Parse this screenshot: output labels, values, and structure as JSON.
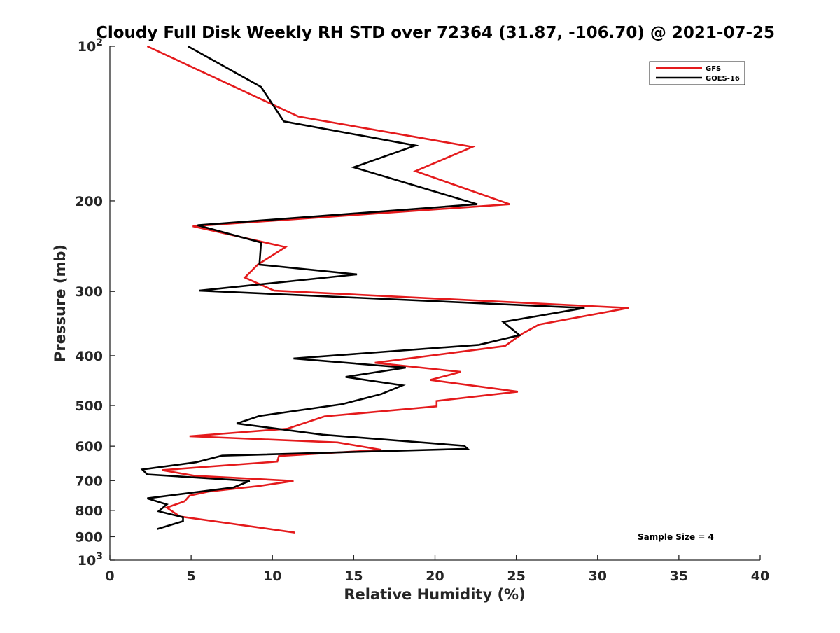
{
  "chart_data": {
    "type": "line",
    "title": "Cloudy Full Disk Weekly RH STD over 72364 (31.87, -106.70) @ 2021-07-25",
    "xlabel": "Relative Humidity (%)",
    "ylabel": "Pressure (mb)",
    "xlim": [
      0,
      40
    ],
    "ylim": [
      100,
      1000
    ],
    "y_scale": "log",
    "y_reversed": true,
    "x_ticks": [
      "0",
      "5",
      "10",
      "15",
      "20",
      "25",
      "30",
      "35",
      "40"
    ],
    "y_ticks": [
      {
        "value": 100,
        "base": "10",
        "exp": "2"
      },
      {
        "value": 200,
        "label": "200"
      },
      {
        "value": 300,
        "label": "300"
      },
      {
        "value": 400,
        "label": "400"
      },
      {
        "value": 500,
        "label": "500"
      },
      {
        "value": 600,
        "label": "600"
      },
      {
        "value": 700,
        "label": "700"
      },
      {
        "value": 800,
        "label": "800"
      },
      {
        "value": 900,
        "label": "900"
      },
      {
        "value": 1000,
        "base": "10",
        "exp": "3"
      }
    ],
    "grid": false,
    "legend_position": "top-right",
    "annotation": "Sample Size = 4",
    "series": [
      {
        "name": "GFS",
        "color": "#e41a1c",
        "points": [
          [
            2.3,
            100
          ],
          [
            11.6,
            137
          ],
          [
            22.3,
            157
          ],
          [
            18.8,
            175
          ],
          [
            24.6,
            203
          ],
          [
            5.1,
            224
          ],
          [
            10.8,
            246
          ],
          [
            9.1,
            266
          ],
          [
            8.3,
            282
          ],
          [
            10.1,
            299
          ],
          [
            31.9,
            323
          ],
          [
            26.4,
            348
          ],
          [
            25.4,
            362
          ],
          [
            24.3,
            383
          ],
          [
            16.3,
            413
          ],
          [
            21.6,
            430
          ],
          [
            19.7,
            446
          ],
          [
            25.1,
            470
          ],
          [
            20.1,
            490
          ],
          [
            20.1,
            502
          ],
          [
            13.2,
            525
          ],
          [
            10.9,
            555
          ],
          [
            4.9,
            574
          ],
          [
            14.0,
            590
          ],
          [
            16.7,
            610
          ],
          [
            10.4,
            627
          ],
          [
            10.3,
            643
          ],
          [
            3.2,
            668
          ],
          [
            5.2,
            685
          ],
          [
            11.3,
            701
          ],
          [
            9.2,
            717
          ],
          [
            6.1,
            735
          ],
          [
            4.9,
            749
          ],
          [
            4.6,
            768
          ],
          [
            3.5,
            790
          ],
          [
            4.3,
            822
          ],
          [
            11.4,
            884
          ]
        ]
      },
      {
        "name": "GOES-16",
        "color": "#000000",
        "points": [
          [
            4.8,
            100
          ],
          [
            9.3,
            120
          ],
          [
            10.7,
            140
          ],
          [
            18.8,
            156
          ],
          [
            15.0,
            172
          ],
          [
            22.6,
            203
          ],
          [
            5.4,
            223
          ],
          [
            9.3,
            241
          ],
          [
            9.2,
            266
          ],
          [
            15.2,
            278
          ],
          [
            5.5,
            299
          ],
          [
            29.2,
            323
          ],
          [
            24.2,
            344
          ],
          [
            25.2,
            365
          ],
          [
            22.7,
            381
          ],
          [
            11.3,
            405
          ],
          [
            18.2,
            422
          ],
          [
            14.5,
            440
          ],
          [
            18.0,
            457
          ],
          [
            16.7,
            475
          ],
          [
            14.3,
            497
          ],
          [
            9.2,
            524
          ],
          [
            7.8,
            542
          ],
          [
            13.1,
            570
          ],
          [
            21.8,
            599
          ],
          [
            22.0,
            607
          ],
          [
            6.9,
            626
          ],
          [
            5.3,
            645
          ],
          [
            2.0,
            666
          ],
          [
            2.3,
            681
          ],
          [
            8.6,
            701
          ],
          [
            7.6,
            722
          ],
          [
            2.3,
            758
          ],
          [
            3.5,
            779
          ],
          [
            3.0,
            803
          ],
          [
            4.5,
            825
          ],
          [
            4.5,
            840
          ],
          [
            2.9,
            870
          ]
        ]
      }
    ]
  }
}
